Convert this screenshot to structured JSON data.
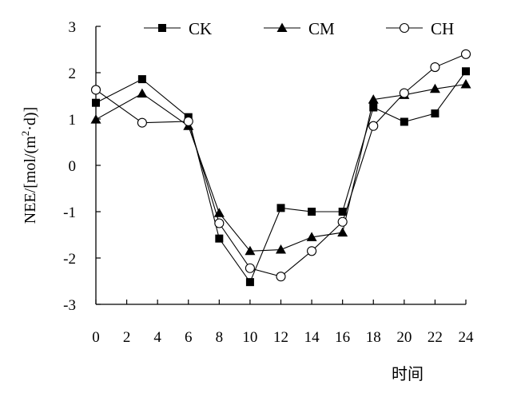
{
  "chart_data": {
    "type": "line",
    "title": "",
    "xlabel": "时间",
    "ylabel": "NEE/[mol/(m²·d)]",
    "ylabel_parts": {
      "before": "NEE/[mol/(m",
      "sup": "2",
      "after": "·d)]"
    },
    "x": [
      0,
      3,
      6,
      8,
      10,
      12,
      14,
      16,
      18,
      20,
      22,
      24
    ],
    "x_ticks": [
      0,
      2,
      4,
      6,
      8,
      10,
      12,
      14,
      16,
      18,
      20,
      22,
      24
    ],
    "y_ticks": [
      3,
      2,
      1,
      0,
      -1,
      -2,
      -3
    ],
    "xlim": [
      0,
      24
    ],
    "ylim": [
      -3,
      3
    ],
    "grid": false,
    "legend_position": "top",
    "series": [
      {
        "name": "CK",
        "marker": "filled-square",
        "values": [
          1.35,
          1.86,
          1.04,
          -1.58,
          -2.52,
          -0.92,
          -1.0,
          -1.0,
          1.25,
          0.94,
          1.12,
          2.03
        ]
      },
      {
        "name": "CM",
        "marker": "filled-triangle",
        "values": [
          0.99,
          1.55,
          0.85,
          -1.03,
          -1.85,
          -1.82,
          -1.55,
          -1.45,
          1.42,
          1.52,
          1.65,
          1.75
        ]
      },
      {
        "name": "CH",
        "marker": "open-circle",
        "values": [
          1.63,
          0.92,
          0.95,
          -1.25,
          -2.22,
          -2.4,
          -1.85,
          -1.22,
          0.85,
          1.56,
          2.12,
          2.4
        ]
      }
    ],
    "colors": {
      "line": "#000000",
      "axis": "#000000",
      "marker_fill_open": "#ffffff"
    }
  }
}
